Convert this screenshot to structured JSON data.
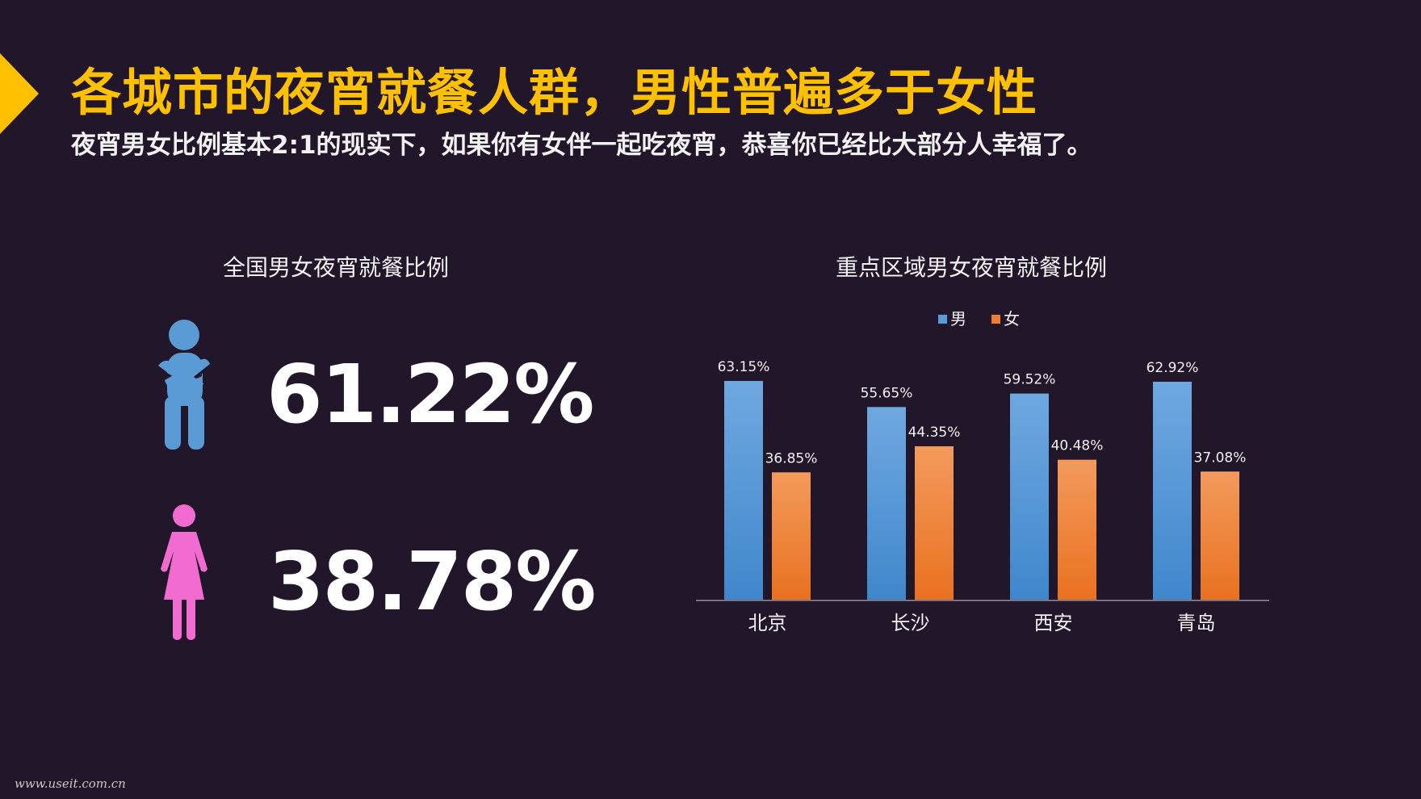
{
  "header": {
    "title": "各城市的夜宵就餐人群，男性普遍多于女性",
    "subtitle": "夜宵男女比例基本2:1的现实下，如果你有女伴一起吃夜宵，恭喜你已经比大部分人幸福了。"
  },
  "national": {
    "title": "全国男女夜宵就餐比例",
    "male_percent": "61.22%",
    "female_percent": "38.78%",
    "male_icon": "male-figure-icon",
    "female_icon": "female-figure-icon"
  },
  "regional": {
    "title": "重点区域男女夜宵就餐比例"
  },
  "colors": {
    "accent": "#ffc000",
    "male": "#5b9bd5",
    "female": "#ed7d31",
    "male_icon": "#5b9bd5",
    "female_icon": "#f26bd0",
    "background": "#22162a"
  },
  "chart_data": {
    "type": "bar",
    "title": "重点区域男女夜宵就餐比例",
    "categories": [
      "北京",
      "长沙",
      "西安",
      "青岛"
    ],
    "series": [
      {
        "name": "男",
        "values": [
          63.15,
          55.65,
          59.52,
          62.92
        ],
        "labels": [
          "63.15%",
          "55.65%",
          "59.52%",
          "62.92%"
        ],
        "color": "#5b9bd5"
      },
      {
        "name": "女",
        "values": [
          36.85,
          44.35,
          40.48,
          37.08
        ],
        "labels": [
          "36.85%",
          "44.35%",
          "40.48%",
          "37.08%"
        ],
        "color": "#ed7d31"
      }
    ],
    "ylim": [
      0,
      70
    ],
    "grid": false,
    "legend": "top-center"
  },
  "footer": {
    "watermark": "www.useit.com.cn"
  }
}
